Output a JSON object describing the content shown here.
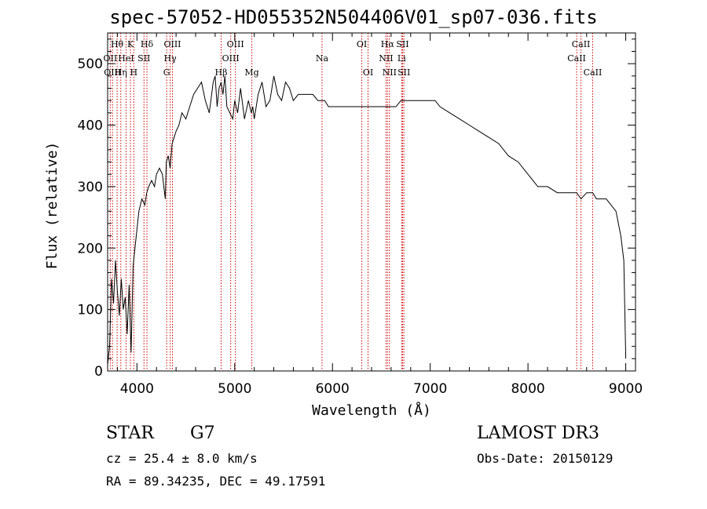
{
  "chart_data": {
    "type": "line",
    "title": "spec-57052-HD055352N504406V01_sp07-036.fits",
    "xlabel": "Wavelength (Å)",
    "ylabel": "Flux (relative)",
    "xlim": [
      3700,
      9100
    ],
    "ylim": [
      0,
      550
    ],
    "xticks": [
      "4000",
      "5000",
      "6000",
      "7000",
      "8000",
      "9000"
    ],
    "yticks": [
      "0",
      "100",
      "200",
      "300",
      "400",
      "500"
    ],
    "series": [
      {
        "x": [
          3700,
          3720,
          3740,
          3760,
          3780,
          3800,
          3820,
          3840,
          3860,
          3880,
          3900,
          3920,
          3940,
          3960,
          3980,
          4000,
          4020,
          4050,
          4080,
          4100,
          4120,
          4150,
          4180,
          4200,
          4230,
          4260,
          4290,
          4300,
          4320,
          4340,
          4360,
          4380,
          4400,
          4430,
          4460,
          4500,
          4540,
          4580,
          4620,
          4660,
          4700,
          4740,
          4780,
          4800,
          4820,
          4840,
          4861,
          4880,
          4900,
          4920,
          4950,
          4980,
          5000,
          5030,
          5060,
          5100,
          5140,
          5170,
          5184,
          5200,
          5240,
          5280,
          5320,
          5360,
          5400,
          5440,
          5480,
          5520,
          5560,
          5600,
          5650,
          5700,
          5750,
          5800,
          5850,
          5893,
          5920,
          5960,
          6000,
          6050,
          6100,
          6150,
          6200,
          6250,
          6300,
          6350,
          6400,
          6450,
          6500,
          6540,
          6563,
          6580,
          6600,
          6650,
          6700,
          6750,
          6800,
          6850,
          6900,
          6950,
          7000,
          7050,
          7100,
          7200,
          7300,
          7400,
          7500,
          7600,
          7700,
          7800,
          7900,
          8000,
          8100,
          8200,
          8300,
          8400,
          8498,
          8542,
          8600,
          8662,
          8700,
          8800,
          8850,
          8900,
          8950,
          8980,
          9000
        ],
        "values": [
          10,
          40,
          150,
          110,
          180,
          130,
          90,
          150,
          100,
          120,
          60,
          140,
          30,
          170,
          200,
          230,
          260,
          280,
          270,
          290,
          300,
          310,
          300,
          320,
          330,
          320,
          280,
          340,
          350,
          330,
          370,
          380,
          390,
          400,
          420,
          410,
          430,
          450,
          460,
          470,
          440,
          420,
          470,
          480,
          430,
          460,
          470,
          450,
          480,
          430,
          420,
          410,
          440,
          420,
          460,
          410,
          440,
          420,
          430,
          410,
          450,
          470,
          430,
          440,
          480,
          450,
          440,
          470,
          460,
          440,
          450,
          450,
          450,
          450,
          440,
          440,
          440,
          430,
          430,
          430,
          430,
          430,
          430,
          430,
          430,
          430,
          430,
          430,
          430,
          430,
          430,
          430,
          430,
          430,
          440,
          440,
          440,
          440,
          440,
          440,
          440,
          440,
          430,
          420,
          410,
          400,
          390,
          380,
          370,
          350,
          340,
          320,
          300,
          300,
          290,
          290,
          290,
          280,
          290,
          290,
          280,
          280,
          270,
          260,
          220,
          180,
          20
        ]
      }
    ],
    "spectral_lines": [
      {
        "label": "Hθ",
        "x": 3797,
        "row": 0
      },
      {
        "label": "K",
        "x": 3934,
        "row": 0
      },
      {
        "label": "Hδ",
        "x": 4102,
        "row": 0
      },
      {
        "label": "OIII",
        "x": 4363,
        "row": 0
      },
      {
        "label": "OIII",
        "x": 5007,
        "row": 0
      },
      {
        "label": "OI",
        "x": 6300,
        "row": 0
      },
      {
        "label": "Hα",
        "x": 6563,
        "row": 0
      },
      {
        "label": "SII",
        "x": 6717,
        "row": 0
      },
      {
        "label": "CaII",
        "x": 8542,
        "row": 0
      },
      {
        "label": "OII",
        "x": 3727,
        "row": 1
      },
      {
        "label": "HeI",
        "x": 3889,
        "row": 1
      },
      {
        "label": "SII",
        "x": 4072,
        "row": 1
      },
      {
        "label": "Hγ",
        "x": 4340,
        "row": 1
      },
      {
        "label": "OIII",
        "x": 4959,
        "row": 1
      },
      {
        "label": "Na",
        "x": 5893,
        "row": 1
      },
      {
        "label": "NII",
        "x": 6548,
        "row": 1
      },
      {
        "label": "Li",
        "x": 6708,
        "row": 1
      },
      {
        "label": "CaII",
        "x": 8498,
        "row": 1
      },
      {
        "label": "OIII",
        "x": 3750,
        "row": 2
      },
      {
        "label": "Hη",
        "x": 3835,
        "row": 2
      },
      {
        "label": "H",
        "x": 3968,
        "row": 2
      },
      {
        "label": "G",
        "x": 4304,
        "row": 2
      },
      {
        "label": "Hβ",
        "x": 4861,
        "row": 2
      },
      {
        "label": "Mg",
        "x": 5175,
        "row": 2
      },
      {
        "label": "OI",
        "x": 6364,
        "row": 2
      },
      {
        "label": "NII",
        "x": 6583,
        "row": 2
      },
      {
        "label": "SII",
        "x": 6731,
        "row": 2
      },
      {
        "label": "CaII",
        "x": 8662,
        "row": 2
      }
    ],
    "grid": false,
    "line_color": "#000000",
    "marker_color": "#cc0000"
  },
  "info": {
    "class_label": "STAR",
    "subclass": "G7",
    "survey": "LAMOST DR3",
    "cz": "cz = 25.4 ± 8.0 km/s",
    "obs_date": "Obs-Date: 20150129",
    "coords": "RA =  89.34235, DEC =  49.17591"
  }
}
